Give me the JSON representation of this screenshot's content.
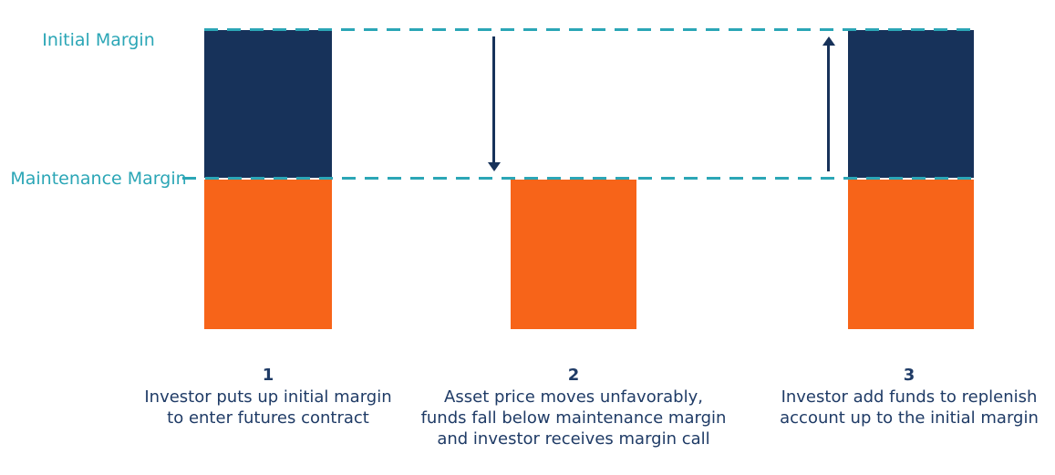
{
  "colors": {
    "navy": "#17325a",
    "orange": "#f76419",
    "teal": "#2ba6b6",
    "text": "#1f3b66",
    "background": "#ffffff"
  },
  "labels": {
    "initial_margin": "Initial Margin",
    "maintenance_margin": "Maintenance Margin"
  },
  "steps": [
    {
      "number": "1",
      "lines": [
        "Investor puts up initial margin",
        "to enter futures contract"
      ]
    },
    {
      "number": "2",
      "lines": [
        "Asset price moves unfavorably,",
        "funds fall below maintenance margin",
        "and investor receives margin call"
      ]
    },
    {
      "number": "3",
      "lines": [
        "Investor add funds to replenish",
        "account up to the initial margin"
      ]
    }
  ],
  "diagram_data": {
    "type": "margin-call-process",
    "levels": [
      "Initial Margin",
      "Maintenance Margin"
    ],
    "level_lines_style": "teal dashed horizontal lines",
    "bars": [
      {
        "step": "1",
        "segments": [
          {
            "range": "initial-to-maintenance",
            "color": "navy"
          },
          {
            "range": "below-maintenance",
            "color": "orange"
          }
        ]
      },
      {
        "step": "2",
        "segments": [
          {
            "range": "below-maintenance",
            "color": "orange"
          }
        ]
      },
      {
        "step": "3",
        "segments": [
          {
            "range": "initial-to-maintenance",
            "color": "navy"
          },
          {
            "range": "below-maintenance",
            "color": "orange"
          }
        ]
      }
    ],
    "arrows": [
      {
        "direction": "down",
        "color": "navy",
        "location": "between initial and maintenance lines, left of bar 2"
      },
      {
        "direction": "up",
        "color": "navy",
        "location": "between maintenance and initial lines, left of bar 3"
      }
    ]
  }
}
